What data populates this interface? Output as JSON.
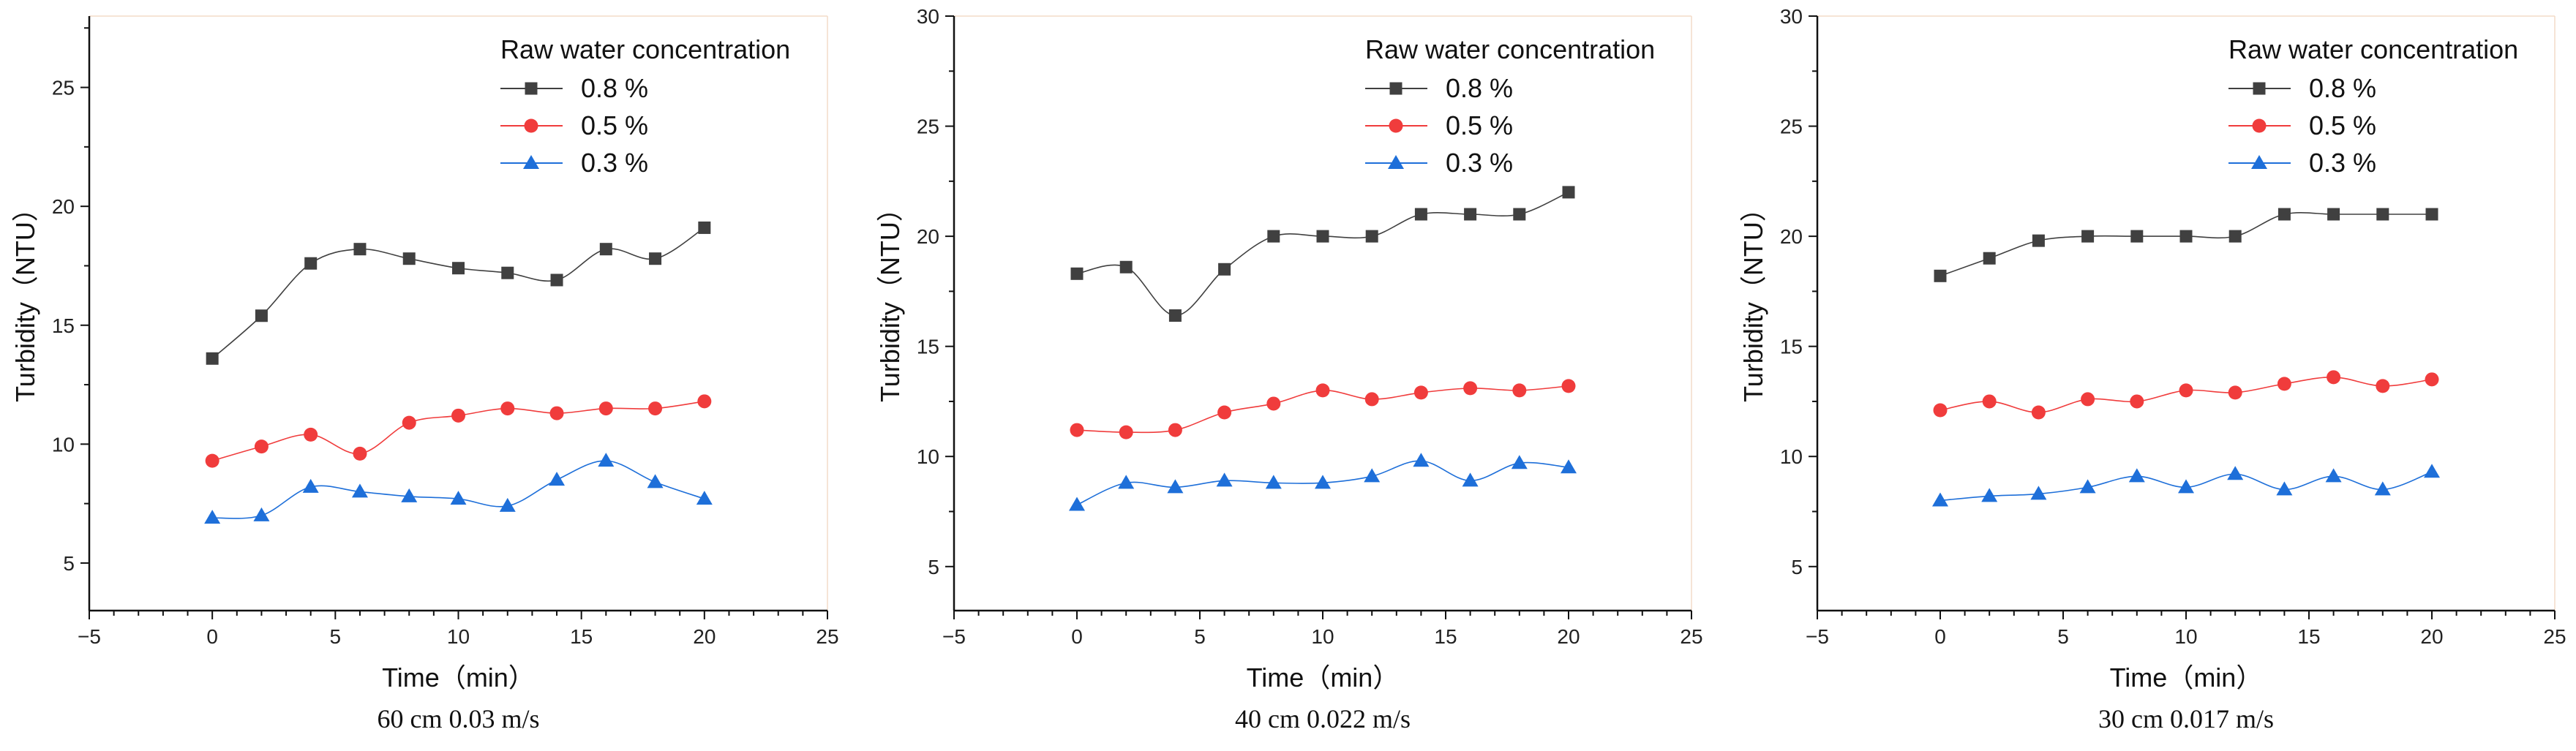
{
  "chart_data": [
    {
      "type": "line",
      "caption": "60 cm   0.03 m/s",
      "xlabel": "Time（min）",
      "ylabel": "Turbidity（NTU）",
      "xlim": [
        -5,
        25
      ],
      "ylim": [
        3,
        28
      ],
      "xticks": [
        "−5",
        "0",
        "5",
        "10",
        "15",
        "20",
        "25"
      ],
      "yticks": [
        "5",
        "10",
        "15",
        "20",
        "25"
      ],
      "legend_title": "Raw water concentration",
      "x": [
        0,
        2,
        4,
        6,
        8,
        10,
        12,
        14,
        16,
        18,
        20
      ],
      "series": [
        {
          "name": "0.8 %",
          "color": "#404040",
          "marker": "square",
          "values": [
            13.6,
            15.4,
            17.6,
            18.2,
            17.8,
            17.4,
            17.2,
            16.9,
            18.2,
            17.8,
            19.1
          ]
        },
        {
          "name": "0.5 %",
          "color": "#f03c3c",
          "marker": "circle",
          "values": [
            9.3,
            9.9,
            10.4,
            9.6,
            10.9,
            11.2,
            11.5,
            11.3,
            11.5,
            11.5,
            11.8
          ]
        },
        {
          "name": "0.3 %",
          "color": "#1e6fd9",
          "marker": "triangle",
          "values": [
            6.9,
            7.0,
            8.2,
            8.0,
            7.8,
            7.7,
            7.4,
            8.5,
            9.3,
            8.4,
            7.7
          ]
        }
      ]
    },
    {
      "type": "line",
      "caption": "40 cm   0.022 m/s",
      "xlabel": "Time（min）",
      "ylabel": "Turbidity（NTU）",
      "xlim": [
        -5,
        25
      ],
      "ylim": [
        3,
        30
      ],
      "xticks": [
        "−5",
        "0",
        "5",
        "10",
        "15",
        "20",
        "25"
      ],
      "yticks": [
        "5",
        "10",
        "15",
        "20",
        "25",
        "30"
      ],
      "legend_title": "Raw water concentration",
      "x": [
        0,
        2,
        4,
        6,
        8,
        10,
        12,
        14,
        16,
        18,
        20
      ],
      "series": [
        {
          "name": "0.8 %",
          "color": "#404040",
          "marker": "square",
          "values": [
            18.3,
            18.6,
            16.4,
            18.5,
            20.0,
            20.0,
            20.0,
            21.0,
            21.0,
            21.0,
            22.0
          ]
        },
        {
          "name": "0.5 %",
          "color": "#f03c3c",
          "marker": "circle",
          "values": [
            11.2,
            11.1,
            11.2,
            12.0,
            12.4,
            13.0,
            12.6,
            12.9,
            13.1,
            13.0,
            13.2
          ]
        },
        {
          "name": "0.3 %",
          "color": "#1e6fd9",
          "marker": "triangle",
          "values": [
            7.8,
            8.8,
            8.6,
            8.9,
            8.8,
            8.8,
            9.1,
            9.8,
            8.9,
            9.7,
            9.5
          ]
        }
      ]
    },
    {
      "type": "line",
      "caption": "30 cm   0.017 m/s",
      "xlabel": "Time（min）",
      "ylabel": "Turbidity（NTU）",
      "xlim": [
        -5,
        25
      ],
      "ylim": [
        3,
        30
      ],
      "xticks": [
        "−5",
        "0",
        "5",
        "10",
        "15",
        "20",
        "25"
      ],
      "yticks": [
        "5",
        "10",
        "15",
        "20",
        "25",
        "30"
      ],
      "legend_title": "Raw water concentration",
      "x": [
        0,
        2,
        4,
        6,
        8,
        10,
        12,
        14,
        16,
        18,
        20
      ],
      "series": [
        {
          "name": "0.8 %",
          "color": "#404040",
          "marker": "square",
          "values": [
            18.2,
            19.0,
            19.8,
            20.0,
            20.0,
            20.0,
            20.0,
            21.0,
            21.0,
            21.0,
            21.0
          ]
        },
        {
          "name": "0.5 %",
          "color": "#f03c3c",
          "marker": "circle",
          "values": [
            12.1,
            12.5,
            12.0,
            12.6,
            12.5,
            13.0,
            12.9,
            13.3,
            13.6,
            13.2,
            13.5
          ]
        },
        {
          "name": "0.3 %",
          "color": "#1e6fd9",
          "marker": "triangle",
          "values": [
            8.0,
            8.2,
            8.3,
            8.6,
            9.1,
            8.6,
            9.2,
            8.5,
            9.1,
            8.5,
            9.3
          ]
        }
      ]
    }
  ]
}
